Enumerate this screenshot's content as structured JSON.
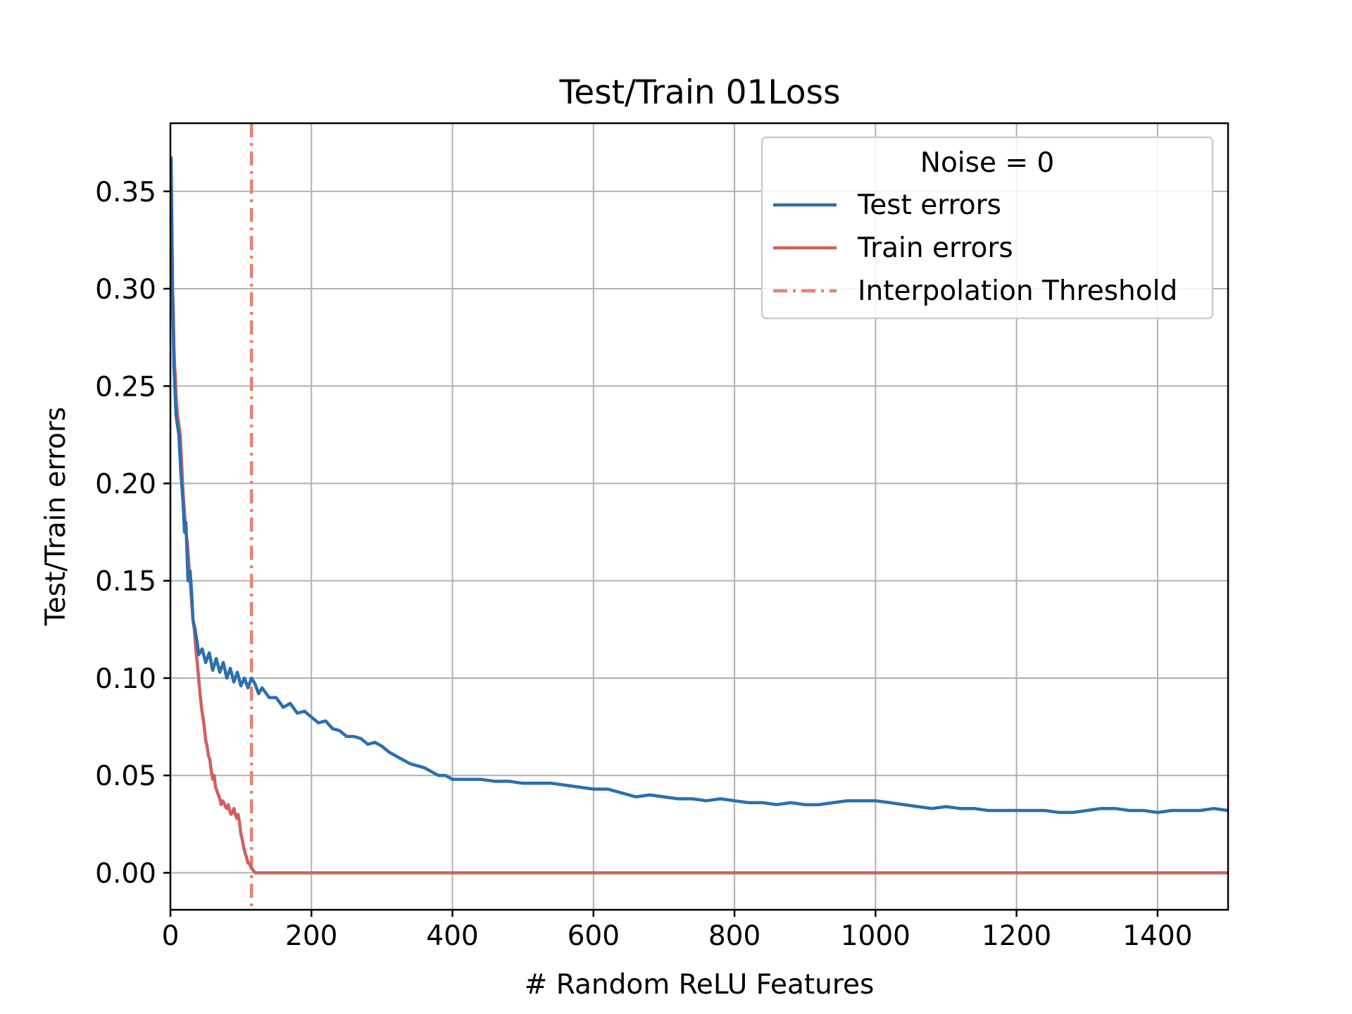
{
  "chart_data": {
    "type": "line",
    "title": "Test/Train 01Loss",
    "xlabel": "# Random ReLU Features",
    "ylabel": "Test/Train errors",
    "xlim": [
      0,
      1500
    ],
    "ylim": [
      -0.019,
      0.385
    ],
    "xticks": [
      0,
      200,
      400,
      600,
      800,
      1000,
      1200,
      1400
    ],
    "xtick_labels": [
      "0",
      "200",
      "400",
      "600",
      "800",
      "1000",
      "1200",
      "1400"
    ],
    "yticks": [
      0.0,
      0.05,
      0.1,
      0.15,
      0.2,
      0.25,
      0.3,
      0.35
    ],
    "ytick_labels": [
      "0.00",
      "0.05",
      "0.10",
      "0.15",
      "0.20",
      "0.25",
      "0.30",
      "0.35"
    ],
    "grid": true,
    "legend": {
      "title": "Noise = 0",
      "placement": "top-right"
    },
    "threshold": {
      "name": "Interpolation Threshold",
      "x": 115,
      "color": "#e8806f"
    },
    "series": [
      {
        "name": "Test errors",
        "color": "#2b6fad",
        "x": [
          1,
          3,
          5,
          8,
          12,
          15,
          18,
          20,
          22,
          25,
          28,
          30,
          32,
          35,
          38,
          40,
          45,
          50,
          55,
          60,
          65,
          70,
          75,
          80,
          85,
          90,
          95,
          100,
          105,
          110,
          115,
          120,
          125,
          130,
          140,
          150,
          160,
          170,
          180,
          190,
          200,
          210,
          220,
          230,
          240,
          250,
          260,
          270,
          280,
          290,
          300,
          310,
          320,
          330,
          340,
          350,
          360,
          370,
          380,
          390,
          400,
          420,
          440,
          460,
          480,
          500,
          520,
          540,
          560,
          580,
          600,
          620,
          640,
          660,
          680,
          700,
          720,
          740,
          760,
          780,
          800,
          820,
          840,
          860,
          880,
          900,
          920,
          940,
          960,
          980,
          1000,
          1020,
          1040,
          1060,
          1080,
          1100,
          1120,
          1140,
          1160,
          1180,
          1200,
          1220,
          1240,
          1260,
          1280,
          1300,
          1320,
          1340,
          1360,
          1380,
          1400,
          1420,
          1440,
          1460,
          1480,
          1500
        ],
        "y": [
          0.367,
          0.3,
          0.26,
          0.235,
          0.225,
          0.205,
          0.19,
          0.175,
          0.18,
          0.15,
          0.155,
          0.145,
          0.13,
          0.125,
          0.118,
          0.112,
          0.115,
          0.108,
          0.113,
          0.104,
          0.11,
          0.103,
          0.108,
          0.1,
          0.105,
          0.098,
          0.103,
          0.096,
          0.1,
          0.095,
          0.1,
          0.097,
          0.092,
          0.095,
          0.09,
          0.09,
          0.085,
          0.087,
          0.082,
          0.083,
          0.08,
          0.077,
          0.078,
          0.074,
          0.073,
          0.07,
          0.07,
          0.069,
          0.066,
          0.067,
          0.065,
          0.062,
          0.06,
          0.058,
          0.056,
          0.055,
          0.054,
          0.052,
          0.05,
          0.05,
          0.048,
          0.048,
          0.048,
          0.047,
          0.047,
          0.046,
          0.046,
          0.046,
          0.045,
          0.044,
          0.043,
          0.043,
          0.041,
          0.039,
          0.04,
          0.039,
          0.038,
          0.038,
          0.037,
          0.038,
          0.037,
          0.036,
          0.036,
          0.035,
          0.036,
          0.035,
          0.035,
          0.036,
          0.037,
          0.037,
          0.037,
          0.036,
          0.035,
          0.034,
          0.033,
          0.034,
          0.033,
          0.033,
          0.032,
          0.032,
          0.032,
          0.032,
          0.032,
          0.031,
          0.031,
          0.032,
          0.033,
          0.033,
          0.032,
          0.032,
          0.031,
          0.032,
          0.032,
          0.032,
          0.033,
          0.032
        ]
      },
      {
        "name": "Train errors",
        "color": "#d0605e",
        "x": [
          1,
          2,
          3,
          4,
          5,
          6,
          7,
          8,
          10,
          12,
          14,
          16,
          18,
          20,
          22,
          24,
          26,
          28,
          30,
          32,
          34,
          36,
          38,
          40,
          42,
          44,
          46,
          48,
          50,
          52,
          54,
          56,
          58,
          60,
          62,
          64,
          66,
          68,
          70,
          72,
          74,
          76,
          78,
          80,
          82,
          84,
          86,
          88,
          90,
          92,
          94,
          96,
          98,
          100,
          102,
          104,
          106,
          108,
          110,
          112,
          114,
          116,
          118,
          120,
          125,
          200,
          400,
          600,
          800,
          1000,
          1200,
          1400,
          1500
        ],
        "y": [
          0.368,
          0.33,
          0.3,
          0.29,
          0.27,
          0.26,
          0.255,
          0.245,
          0.235,
          0.23,
          0.225,
          0.21,
          0.195,
          0.185,
          0.175,
          0.17,
          0.16,
          0.15,
          0.14,
          0.13,
          0.125,
          0.115,
          0.108,
          0.1,
          0.092,
          0.085,
          0.08,
          0.075,
          0.068,
          0.065,
          0.06,
          0.058,
          0.052,
          0.048,
          0.05,
          0.044,
          0.042,
          0.04,
          0.038,
          0.035,
          0.037,
          0.036,
          0.034,
          0.033,
          0.035,
          0.032,
          0.03,
          0.031,
          0.033,
          0.03,
          0.028,
          0.03,
          0.026,
          0.02,
          0.017,
          0.013,
          0.01,
          0.008,
          0.005,
          0.005,
          0.003,
          0.002,
          0.001,
          0.0,
          0.0,
          0.0,
          0.0,
          0.0,
          0.0,
          0.0,
          0.0,
          0.0,
          0.0
        ]
      }
    ]
  }
}
